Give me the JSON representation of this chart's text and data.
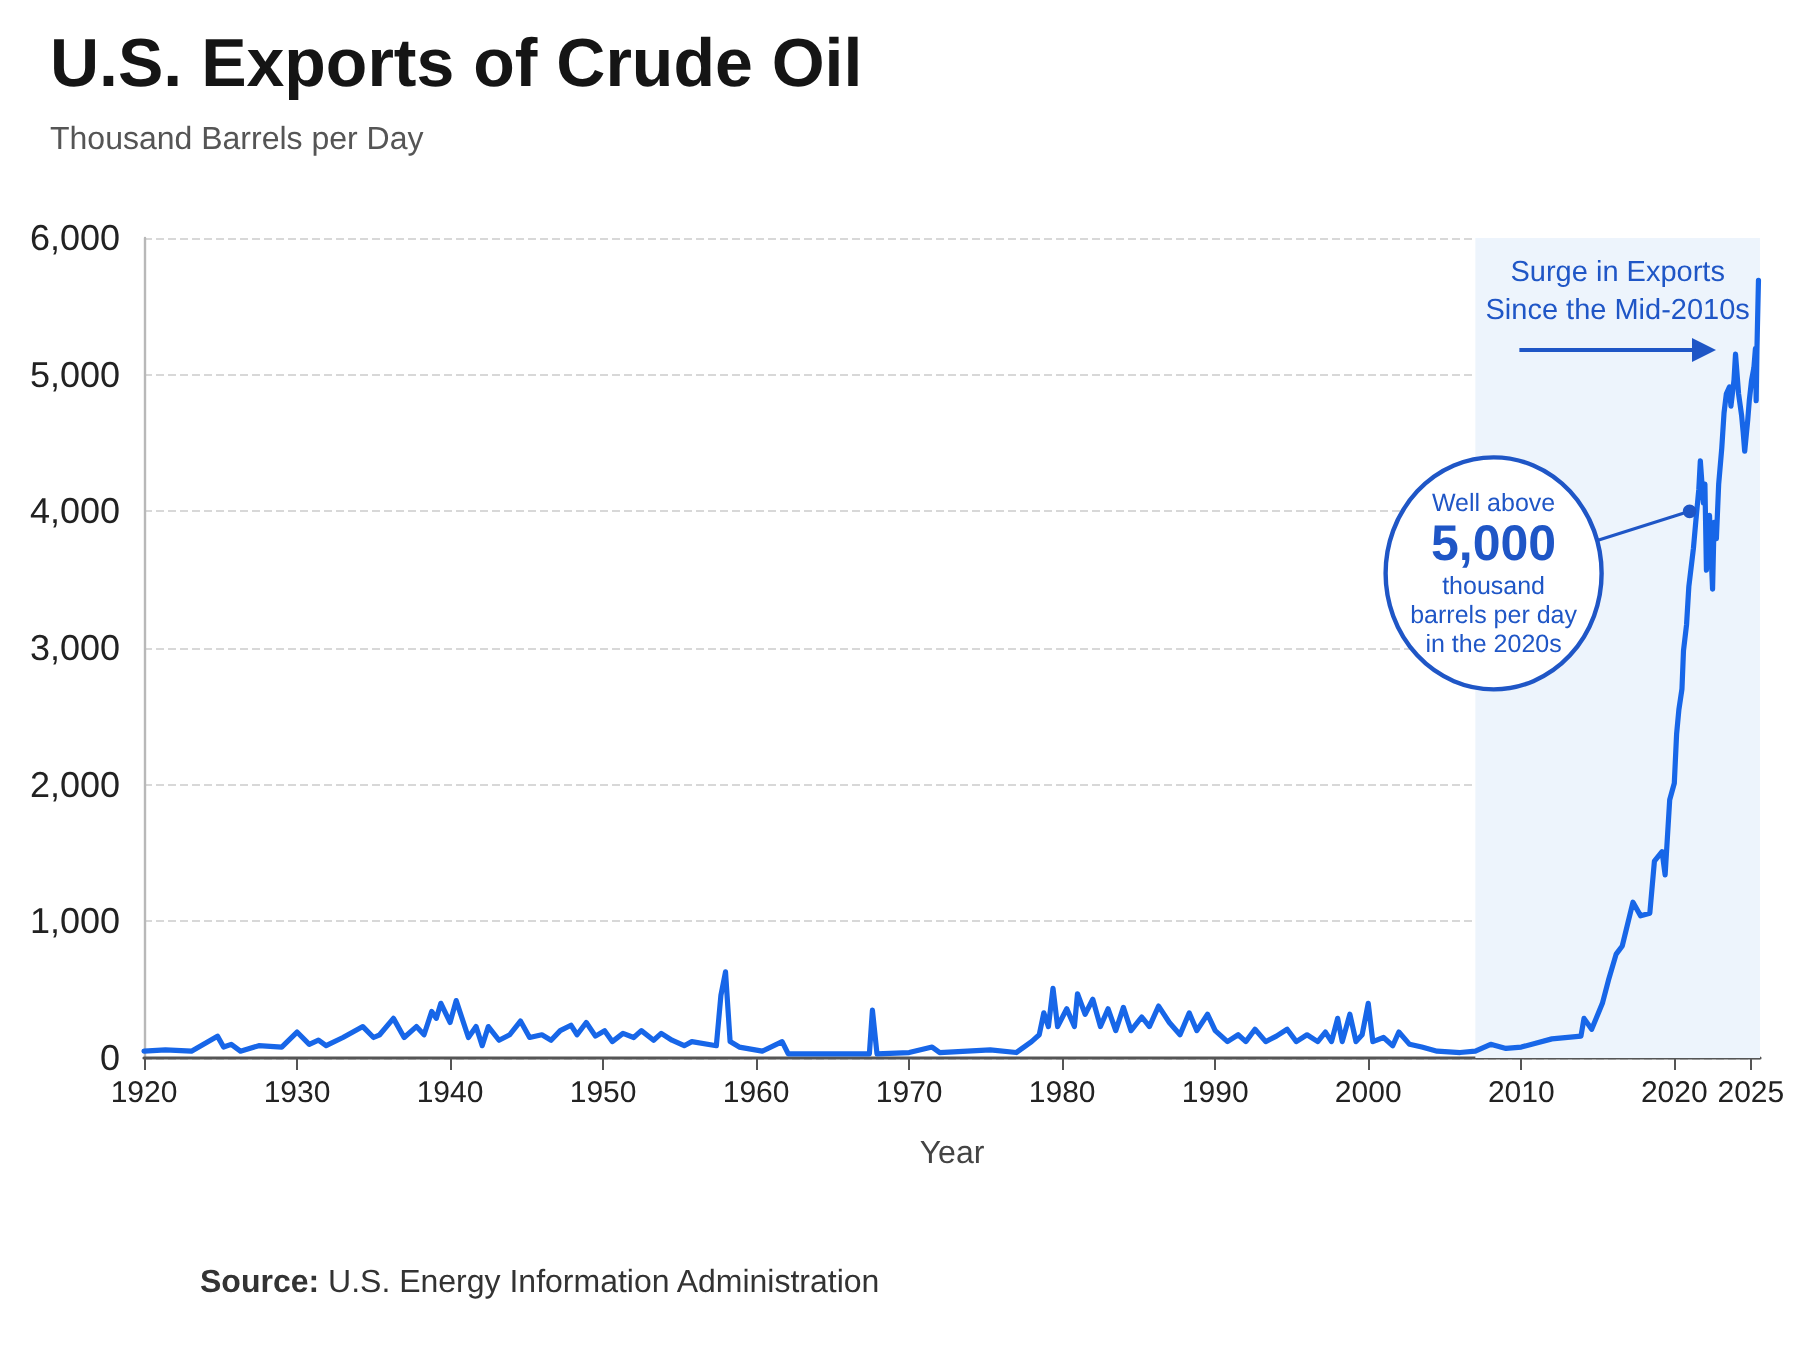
{
  "chart_data": {
    "type": "line",
    "title": "U.S. Exports of Crude Oil",
    "subtitle": "Thousand Barrels per Day",
    "xlabel": "Year",
    "x": [
      1920,
      1921.4,
      1923.1,
      1924.8,
      1925.2,
      1925.7,
      1926.3,
      1927.5,
      1929,
      1930,
      1930.8,
      1931.4,
      1931.9,
      1933,
      1934.3,
      1935,
      1935.4,
      1936.3,
      1937,
      1937.8,
      1938.3,
      1938.8,
      1939.1,
      1939.4,
      1940,
      1940.4,
      1941.2,
      1941.7,
      1942.1,
      1942.5,
      1943.2,
      1943.9,
      1944.6,
      1945.2,
      1946,
      1946.6,
      1947.2,
      1947.9,
      1948.3,
      1948.9,
      1949.5,
      1950.1,
      1950.6,
      1951.3,
      1952,
      1952.5,
      1953.3,
      1953.8,
      1954.5,
      1955.3,
      1955.8,
      1957.4,
      1957.7,
      1958,
      1958.3,
      1958.9,
      1960.4,
      1961.7,
      1962.1,
      1967.4,
      1967.6,
      1967.9,
      1970,
      1971.5,
      1972,
      1975.3,
      1977,
      1978,
      1978.5,
      1978.8,
      1979.1,
      1979.4,
      1979.7,
      1980.3,
      1980.8,
      1981,
      1981.5,
      1982,
      1982.5,
      1983,
      1983.5,
      1984,
      1984.5,
      1985.2,
      1985.7,
      1986.3,
      1987,
      1987.7,
      1988.3,
      1988.8,
      1989.5,
      1990,
      1990.8,
      1991.5,
      1992,
      1992.6,
      1993.3,
      1994,
      1994.7,
      1995.3,
      1996,
      1996.7,
      1997.2,
      1997.6,
      1998,
      1998.3,
      1998.8,
      1999.2,
      1999.6,
      2000,
      2000.3,
      2001,
      2001.6,
      2002,
      2002.7,
      2003.5,
      2004.5,
      2006,
      2007,
      2008,
      2009,
      2010,
      2011,
      2012,
      2013.9,
      2014.1,
      2014.6,
      2015.3,
      2015.7,
      2016.2,
      2016.6,
      2017.3,
      2017.8,
      2018.4,
      2018.7,
      2019.2,
      2019.4,
      2019.7,
      2020,
      2020.15,
      2020.3,
      2020.5,
      2020.6,
      2020.8,
      2020.95,
      2021.1,
      2021.25,
      2021.4,
      2021.6,
      2021.7,
      2021.9,
      2022,
      2022.1,
      2022.3,
      2022.5,
      2022.6,
      2022.75,
      2022.9,
      2023.1,
      2023.25,
      2023.4,
      2023.6,
      2023.7,
      2023.9,
      2024,
      2024.2,
      2024.4,
      2024.5,
      2024.6,
      2024.8,
      2024.9,
      2025.05,
      2025.2,
      2025.3,
      2025.35,
      2025.4,
      2025.5
    ],
    "series": [
      {
        "color": "#1766e8",
        "values": [
          50,
          60,
          50,
          160,
          80,
          100,
          50,
          90,
          80,
          190,
          100,
          130,
          90,
          150,
          230,
          150,
          170,
          290,
          150,
          230,
          170,
          340,
          290,
          400,
          260,
          420,
          150,
          230,
          90,
          230,
          130,
          170,
          270,
          150,
          170,
          130,
          200,
          240,
          170,
          260,
          160,
          200,
          120,
          180,
          150,
          200,
          130,
          180,
          130,
          90,
          120,
          90,
          460,
          630,
          120,
          80,
          50,
          120,
          30,
          30,
          350,
          30,
          40,
          80,
          40,
          60,
          40,
          120,
          170,
          330,
          230,
          510,
          230,
          360,
          230,
          470,
          320,
          430,
          230,
          360,
          200,
          370,
          200,
          300,
          230,
          380,
          260,
          170,
          330,
          200,
          320,
          200,
          120,
          170,
          120,
          210,
          120,
          160,
          210,
          120,
          170,
          120,
          190,
          120,
          290,
          120,
          320,
          120,
          170,
          400,
          120,
          150,
          90,
          190,
          100,
          80,
          50,
          40,
          50,
          100,
          70,
          80,
          110,
          140,
          160,
          290,
          210,
          400,
          570,
          760,
          820,
          1140,
          1040,
          1060,
          1440,
          1510,
          1340,
          1890,
          2010,
          2370,
          2550,
          2700,
          2980,
          3170,
          3450,
          3590,
          3730,
          3920,
          4160,
          4370,
          4060,
          4200,
          3570,
          3970,
          3430,
          3920,
          3800,
          4200,
          4460,
          4720,
          4860,
          4910,
          4770,
          4960,
          5150,
          4860,
          4700,
          4580,
          4440,
          4670,
          4810,
          4960,
          5050,
          5190,
          4810,
          5190,
          5690
        ]
      }
    ],
    "xlim": [
      1920,
      2025.6
    ],
    "xticks": [
      1920,
      1930,
      1940,
      1950,
      1960,
      1970,
      1980,
      1990,
      2000,
      2010,
      2020,
      2025
    ],
    "ylim": [
      0,
      6000
    ],
    "yticks": [
      0,
      {
        "value": 1000,
        "label": "1,000"
      },
      {
        "value": 2000,
        "label": "2,000"
      },
      {
        "value": 3000,
        "label": "3,000"
      },
      {
        "value": 4000,
        "label": "4,000"
      },
      {
        "value": 5000,
        "label": "5,000"
      },
      {
        "value": 6000,
        "label": "6,000"
      }
    ],
    "grid": "y",
    "marker": "none",
    "line_style": "solid",
    "bands": [
      {
        "axis": "x",
        "from": 2007,
        "to": 2025.6,
        "label": "Surge in Exports\nSince the Mid-2010s",
        "color": "#edf4fc"
      }
    ],
    "annotations": [
      {
        "text": "Well above\n5,000\nthousand\nbarrels per day\nin the 2020s",
        "x": 2021,
        "y": 4000
      },
      "Source: U.S. Energy Information Administration"
    ]
  }
}
